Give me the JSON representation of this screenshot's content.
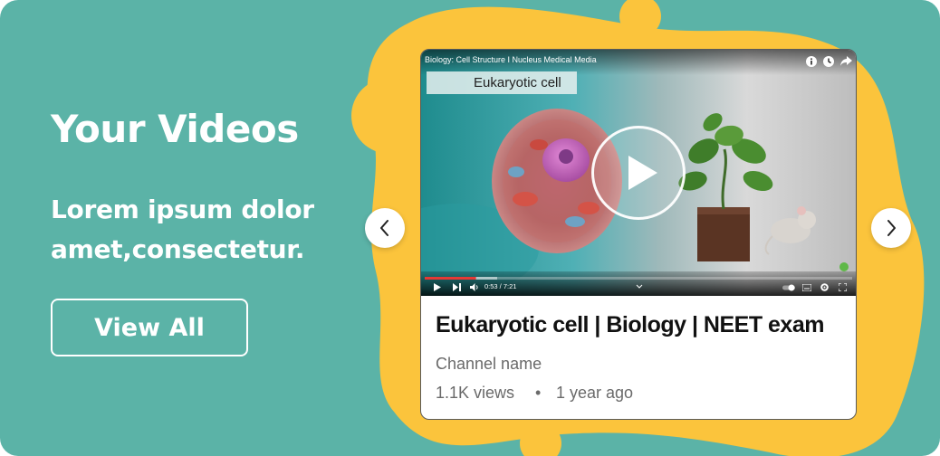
{
  "colors": {
    "background": "#5bb3a7",
    "blob": "#fbc43c",
    "text_on_bg": "#ffffff",
    "progress": "#e53935"
  },
  "hero": {
    "title": "Your Videos",
    "subtitle": "Lorem ipsum dolor amet,consectetur.",
    "view_all_label": "View All"
  },
  "carousel": {
    "prev_icon": "chevron-left-icon",
    "next_icon": "chevron-right-icon"
  },
  "player": {
    "title": "Biology: Cell Structure I Nucleus Medical Media",
    "caption": "Eukaryotic cell",
    "time": "0:53 / 7:21",
    "progress": 0.12,
    "icons": [
      "info-icon",
      "watch-later-icon",
      "share-icon",
      "play-icon",
      "next-icon",
      "volume-icon",
      "chevron-down-icon",
      "autoplay-toggle-icon",
      "subtitles-icon",
      "settings-icon",
      "fullscreen-icon"
    ]
  },
  "video": {
    "title": "Eukaryotic cell | Biology | NEET exam",
    "channel": "Channel name",
    "views": "1.1K views",
    "separator": "•",
    "age": "1 year ago"
  }
}
